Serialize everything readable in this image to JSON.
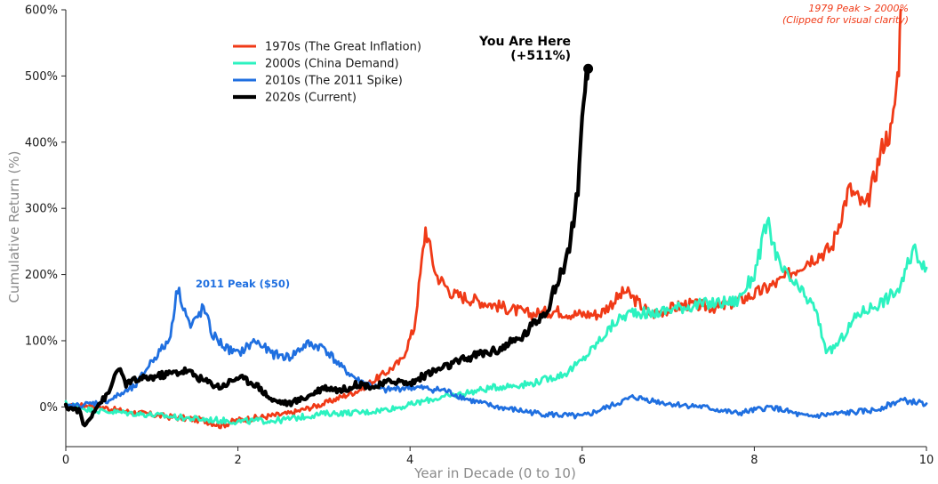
{
  "chart_data": {
    "type": "line",
    "title": "",
    "xlabel": "Year in Decade (0 to 10)",
    "ylabel": "Cumulative Return (%)",
    "xlim": [
      0,
      10
    ],
    "ylim": [
      -60,
      600
    ],
    "x_ticks": [
      "0",
      "2",
      "4",
      "6",
      "8",
      "10"
    ],
    "y_ticks": [
      "0%",
      "100%",
      "200%",
      "300%",
      "400%",
      "500%",
      "600%"
    ],
    "grid": false,
    "legend_position": "upper-left",
    "series": [
      {
        "name": "1970s (The Great Inflation)",
        "color": "#f03a17",
        "x": [
          0,
          0.3,
          0.6,
          0.9,
          1.2,
          1.6,
          1.8,
          2.0,
          2.3,
          2.6,
          3.0,
          3.4,
          3.7,
          3.9,
          4.05,
          4.12,
          4.18,
          4.3,
          4.5,
          4.8,
          5.1,
          5.4,
          5.7,
          5.9,
          6.2,
          6.5,
          6.8,
          7.2,
          7.6,
          8.0,
          8.3,
          8.6,
          8.9,
          9.1,
          9.3,
          9.5,
          9.6,
          9.68,
          9.7
        ],
        "y": [
          0,
          3,
          -5,
          -10,
          -15,
          -20,
          -28,
          -20,
          -15,
          -10,
          5,
          25,
          50,
          70,
          120,
          200,
          270,
          200,
          170,
          160,
          150,
          140,
          145,
          140,
          140,
          175,
          140,
          155,
          150,
          170,
          190,
          220,
          240,
          330,
          300,
          400,
          420,
          520,
          600
        ]
      },
      {
        "name": "2000s (China Demand)",
        "color": "#2cf2c0",
        "x": [
          0,
          0.3,
          0.6,
          1.0,
          1.5,
          2.0,
          2.5,
          3.0,
          3.5,
          3.9,
          4.2,
          4.6,
          5.0,
          5.4,
          5.8,
          6.0,
          6.2,
          6.4,
          6.6,
          6.8,
          7.1,
          7.4,
          7.8,
          8.0,
          8.15,
          8.3,
          8.5,
          8.7,
          8.85,
          9.0,
          9.2,
          9.5,
          9.7,
          9.85,
          10.0
        ],
        "y": [
          5,
          -5,
          -8,
          -12,
          -18,
          -22,
          -20,
          -10,
          -8,
          0,
          10,
          20,
          30,
          35,
          50,
          70,
          100,
          130,
          145,
          140,
          150,
          155,
          160,
          200,
          280,
          210,
          180,
          150,
          80,
          100,
          140,
          160,
          180,
          240,
          210
        ]
      },
      {
        "name": "2010s (The 2011 Spike)",
        "color": "#1f6fe0",
        "x": [
          0,
          0.3,
          0.5,
          0.8,
          1.0,
          1.2,
          1.3,
          1.45,
          1.6,
          1.7,
          1.85,
          2.0,
          2.2,
          2.4,
          2.6,
          2.8,
          3.0,
          3.2,
          3.4,
          3.7,
          4.0,
          4.4,
          4.7,
          5.0,
          5.5,
          6.0,
          6.3,
          6.6,
          7.0,
          7.4,
          7.8,
          8.2,
          8.6,
          9.0,
          9.4,
          9.7,
          10.0
        ],
        "y": [
          0,
          5,
          10,
          30,
          70,
          100,
          180,
          120,
          150,
          110,
          90,
          80,
          100,
          80,
          75,
          95,
          90,
          60,
          40,
          25,
          30,
          25,
          10,
          0,
          -10,
          -15,
          0,
          15,
          5,
          0,
          -10,
          0,
          -15,
          -10,
          -5,
          10,
          5
        ]
      },
      {
        "name": "2020s (Current)",
        "color": "#000000",
        "x": [
          0,
          0.15,
          0.22,
          0.35,
          0.5,
          0.6,
          0.7,
          0.8,
          1.0,
          1.2,
          1.4,
          1.6,
          1.8,
          2.0,
          2.2,
          2.4,
          2.6,
          2.8,
          3.0,
          3.2,
          3.4,
          3.6,
          3.8,
          4.0,
          4.2,
          4.4,
          4.6,
          4.8,
          5.0,
          5.3,
          5.6,
          5.75,
          5.85,
          5.95,
          6.0,
          6.05,
          6.07
        ],
        "y": [
          0,
          -5,
          -30,
          0,
          20,
          60,
          35,
          40,
          45,
          50,
          55,
          40,
          30,
          45,
          35,
          10,
          5,
          15,
          30,
          25,
          35,
          30,
          40,
          35,
          50,
          60,
          70,
          80,
          85,
          105,
          150,
          200,
          240,
          330,
          420,
          490,
          511
        ]
      }
    ],
    "annotations": {
      "peak_2011": "2011 Peak ($50)",
      "you_are_here_line1": "You Are Here",
      "you_are_here_line2": "(+511%)",
      "peak_1979_line1": "1979 Peak > 2000%",
      "peak_1979_line2": "(Clipped for visual clarity)"
    },
    "you_are_here_point": {
      "x": 6.07,
      "y": 511
    }
  }
}
